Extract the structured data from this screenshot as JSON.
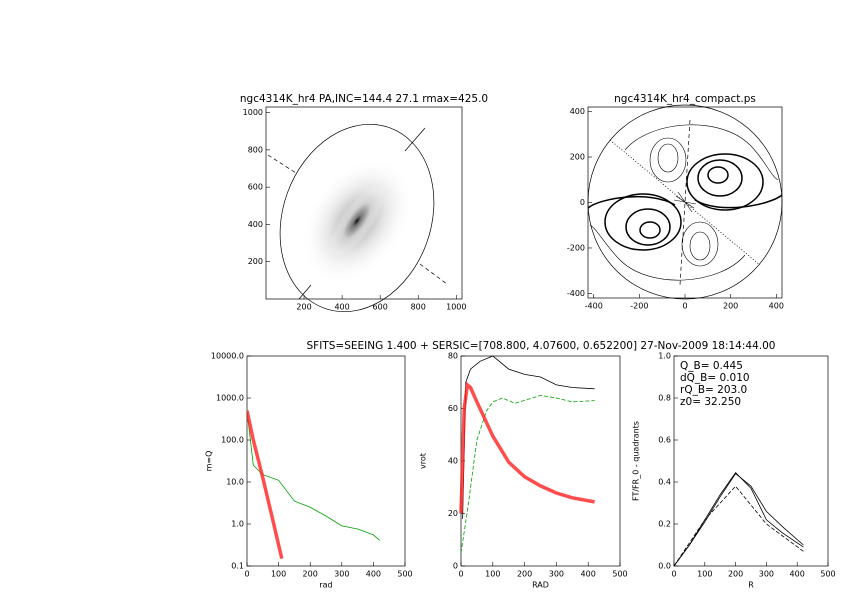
{
  "caption": "SFITS=SEEING 1.400 + SERSIC=[708.800, 4.07600, 0.652200]  27-Nov-2009 18:14:44.00",
  "chart_data": [
    {
      "type": "image",
      "title": "ngc4314K_hr4 PA,INC=144.4 27.1 rmax=425.0",
      "xlim": [
        0,
        1030
      ],
      "ylim": [
        0,
        1030
      ],
      "xticks": [
        200,
        400,
        600,
        800,
        1000
      ],
      "yticks": [
        200,
        400,
        600,
        800,
        1000
      ]
    },
    {
      "type": "contour",
      "title": "ngc4314K_hr4_compact.ps",
      "xlim": [
        -425,
        425
      ],
      "ylim": [
        -420,
        420
      ],
      "xticks": [
        -400,
        -200,
        0,
        200,
        400
      ],
      "yticks": [
        -400,
        -200,
        0,
        200,
        400
      ]
    },
    {
      "type": "line",
      "xlabel": "rad",
      "ylabel": "m=Q",
      "log_y": true,
      "xlim": [
        0,
        500
      ],
      "ylim": [
        0.1,
        10000
      ],
      "xticks": [
        0,
        100,
        200,
        300,
        400,
        500
      ],
      "yticks": [
        0.1,
        {
          "value": 1,
          "label": "1.0"
        },
        {
          "value": 10,
          "label": "10.0"
        },
        {
          "value": 100,
          "label": "100.0"
        },
        {
          "value": 1000,
          "label": "1000.0"
        },
        {
          "value": 10000,
          "label": "10000.0"
        }
      ],
      "series": [
        {
          "color": "#00a000",
          "style": "solid",
          "x": [
            0,
            20,
            50,
            100,
            150,
            200,
            250,
            300,
            350,
            400,
            420
          ],
          "values": [
            500,
            25,
            15,
            11,
            3.5,
            2.5,
            1.55,
            0.9,
            0.76,
            0.55,
            0.41
          ]
        },
        {
          "color": "#ff2020",
          "style": "thick",
          "x": [
            0,
            20,
            50,
            80,
            110
          ],
          "values": [
            500,
            100,
            12.6,
            1.4,
            0.15
          ]
        }
      ]
    },
    {
      "type": "line",
      "xlabel": "RAD",
      "ylabel": "vrot",
      "xlim": [
        0,
        500
      ],
      "ylim": [
        0,
        80
      ],
      "xticks": [
        0,
        100,
        200,
        300,
        400,
        500
      ],
      "yticks": [
        0,
        20,
        40,
        60,
        80
      ],
      "series": [
        {
          "color": "#000000",
          "style": "solid",
          "x": [
            5,
            15,
            30,
            60,
            100,
            150,
            200,
            250,
            300,
            350,
            420
          ],
          "values": [
            18,
            70,
            75,
            78,
            80,
            75,
            73,
            72,
            69,
            68,
            67.5
          ]
        },
        {
          "color": "#00a000",
          "style": "dashed",
          "x": [
            0,
            20,
            50,
            80,
            100,
            130,
            170,
            250,
            300,
            350,
            420
          ],
          "values": [
            5,
            21,
            48,
            59,
            62.5,
            64,
            62,
            65,
            64,
            62.5,
            63
          ]
        },
        {
          "color": "#ff2020",
          "style": "thick",
          "x": [
            0,
            10,
            20,
            30,
            50,
            100,
            150,
            200,
            250,
            300,
            350,
            420
          ],
          "values": [
            20,
            60,
            69,
            68,
            62.5,
            49.5,
            39.6,
            34,
            30.5,
            27.8,
            26,
            24.4
          ]
        }
      ]
    },
    {
      "type": "line",
      "xlabel": "R",
      "ylabel": "FT/FR_0 - quadrants",
      "xlim": [
        0,
        500
      ],
      "ylim": [
        0,
        1
      ],
      "xticks": [
        0,
        100,
        200,
        300,
        400,
        500
      ],
      "yticks": [
        {
          "value": 0,
          "label": "0.0"
        },
        {
          "value": 0.2,
          "label": "0.2"
        },
        {
          "value": 0.4,
          "label": "0.4"
        },
        {
          "value": 0.6,
          "label": "0.6"
        },
        {
          "value": 0.8,
          "label": "0.8"
        },
        {
          "value": 1,
          "label": "1.0"
        }
      ],
      "annotations": [
        "Q_B= 0.445",
        "dQ_B= 0.010",
        "rQ_B= 203.0",
        "z0= 32.250"
      ],
      "series": [
        {
          "color": "#000000",
          "style": "solid",
          "x": [
            0,
            50,
            100,
            150,
            200,
            250,
            300,
            350,
            420
          ],
          "values": [
            0,
            0.1,
            0.22,
            0.34,
            0.445,
            0.37,
            0.22,
            0.16,
            0.09
          ]
        },
        {
          "color": "#000000",
          "style": "solid",
          "x": [
            0,
            50,
            100,
            150,
            200,
            250,
            300,
            350,
            420
          ],
          "values": [
            0,
            0.1,
            0.21,
            0.33,
            0.44,
            0.38,
            0.26,
            0.19,
            0.1
          ]
        },
        {
          "color": "#000000",
          "style": "dashed",
          "x": [
            0,
            100,
            200,
            300,
            420
          ],
          "values": [
            0,
            0.22,
            0.38,
            0.2,
            0.07
          ]
        }
      ]
    }
  ]
}
